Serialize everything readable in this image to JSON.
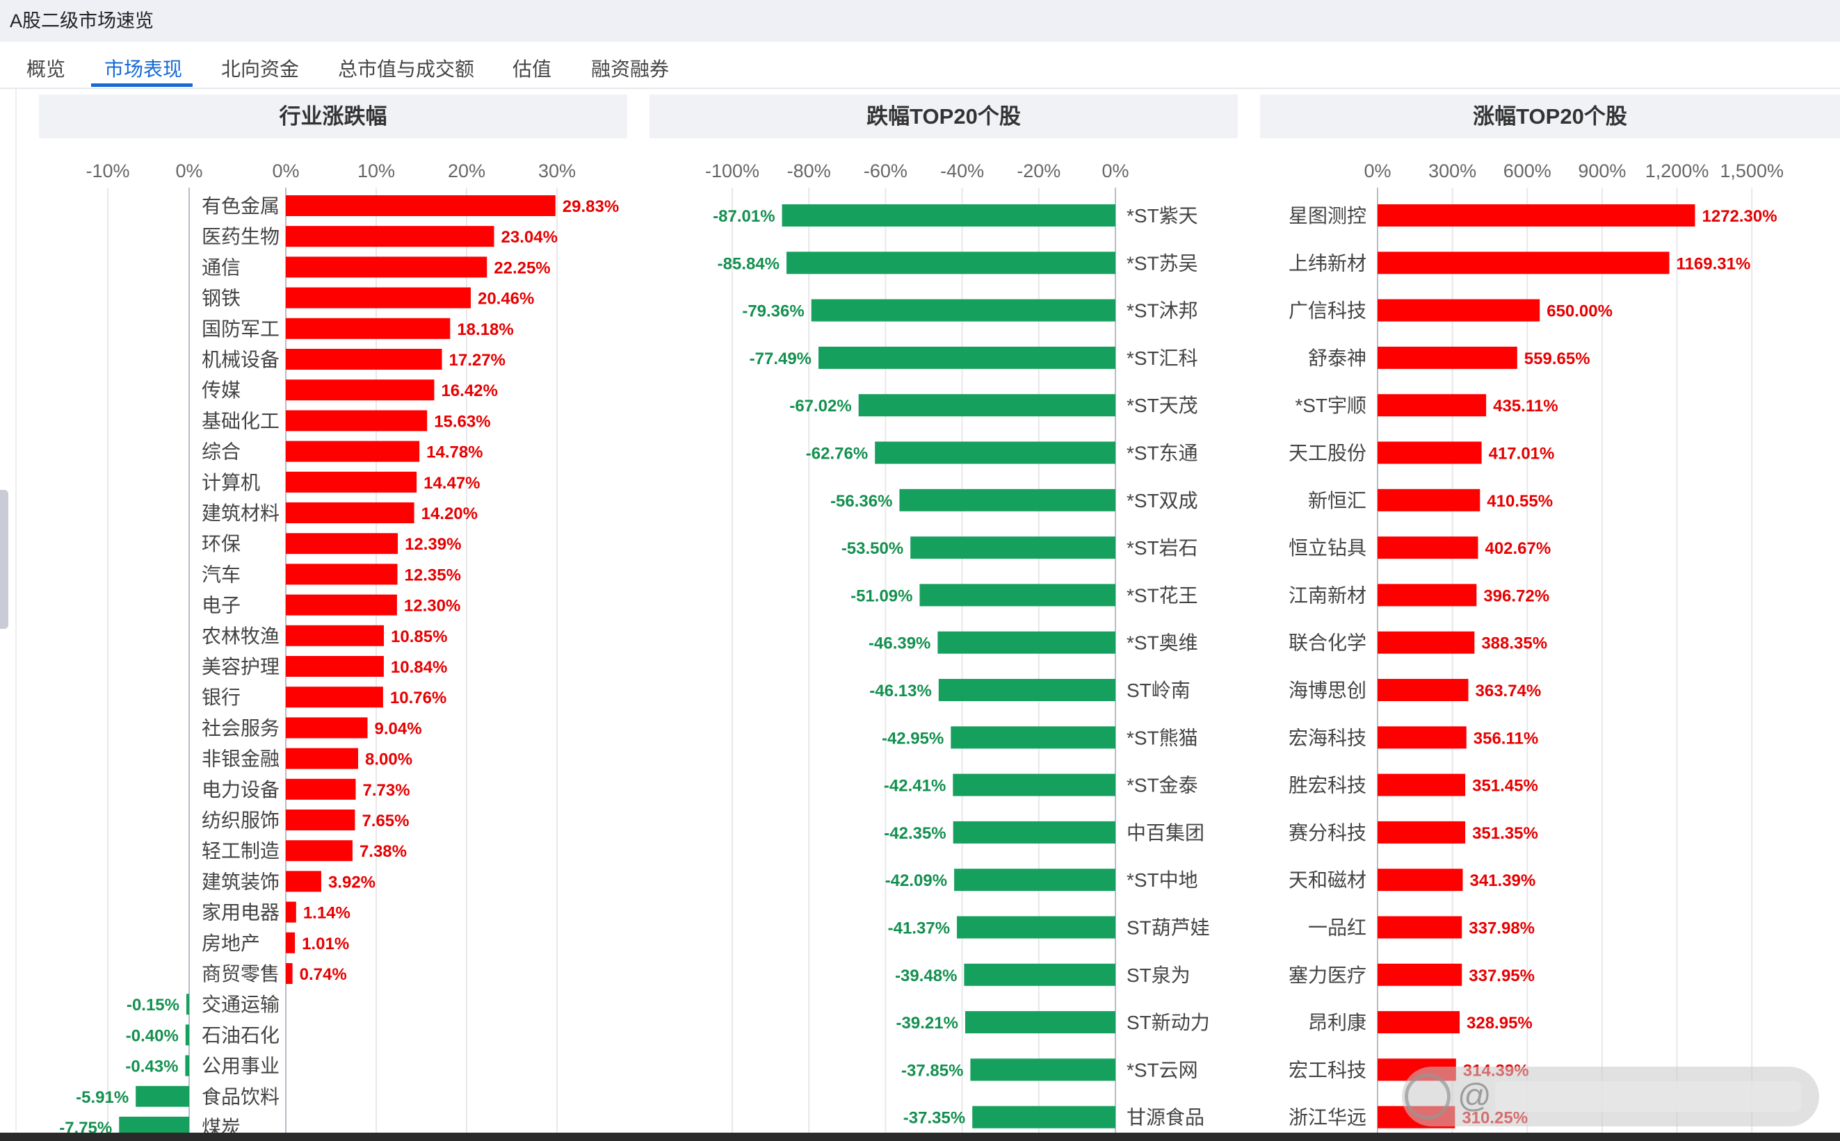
{
  "window": {
    "title": "A股二级市场速览"
  },
  "tabs": [
    {
      "label": "概览",
      "active": false
    },
    {
      "label": "市场表现",
      "active": true
    },
    {
      "label": "北向资金",
      "active": false
    },
    {
      "label": "总市值与成交额",
      "active": false
    },
    {
      "label": "估值",
      "active": false
    },
    {
      "label": "融资融券",
      "active": false
    }
  ],
  "colors": {
    "up": "#ff0000",
    "down": "#16a05d",
    "accent": "#1769d6",
    "label_up": "#e60000",
    "label_down": "#13904f"
  },
  "watermark": {
    "icon": "weibo-logo-icon",
    "text": "@"
  },
  "chart_data": [
    {
      "type": "bar",
      "orientation": "horizontal",
      "title": "行业涨跌幅",
      "xlim": [
        -10,
        30
      ],
      "xticks": [
        "-10%",
        "0%",
        "0%",
        "10%",
        "20%",
        "30%"
      ],
      "grid": true,
      "categories": [
        "有色金属",
        "医药生物",
        "通信",
        "钢铁",
        "国防军工",
        "机械设备",
        "传媒",
        "基础化工",
        "综合",
        "计算机",
        "建筑材料",
        "环保",
        "汽车",
        "电子",
        "农林牧渔",
        "美容护理",
        "银行",
        "社会服务",
        "非银金融",
        "电力设备",
        "纺织服饰",
        "轻工制造",
        "建筑装饰",
        "家用电器",
        "房地产",
        "商贸零售",
        "交通运输",
        "石油石化",
        "公用事业",
        "食品饮料",
        "煤炭"
      ],
      "values": [
        29.83,
        23.04,
        22.25,
        20.46,
        18.18,
        17.27,
        16.42,
        15.63,
        14.78,
        14.47,
        14.2,
        12.39,
        12.35,
        12.3,
        10.85,
        10.84,
        10.76,
        9.04,
        8.0,
        7.73,
        7.65,
        7.38,
        3.92,
        1.14,
        1.01,
        0.74,
        -0.15,
        -0.4,
        -0.43,
        -5.91,
        -7.75
      ],
      "labels": [
        "29.83%",
        "23.04%",
        "22.25%",
        "20.46%",
        "18.18%",
        "17.27%",
        "16.42%",
        "15.63%",
        "14.78%",
        "14.47%",
        "14.20%",
        "12.39%",
        "12.35%",
        "12.30%",
        "10.85%",
        "10.84%",
        "10.76%",
        "9.04%",
        "8.00%",
        "7.73%",
        "7.65%",
        "7.38%",
        "3.92%",
        "1.14%",
        "1.01%",
        "0.74%",
        "-0.15%",
        "-0.40%",
        "-0.43%",
        "-5.91%",
        "-7.75%"
      ]
    },
    {
      "type": "bar",
      "orientation": "horizontal",
      "title": "跌幅TOP20个股",
      "xlim": [
        -100,
        0
      ],
      "xticks": [
        "-100%",
        "-80%",
        "-60%",
        "-40%",
        "-20%",
        "0%"
      ],
      "grid": true,
      "categories": [
        "*ST紫天",
        "*ST苏吴",
        "*ST沐邦",
        "*ST汇科",
        "*ST天茂",
        "*ST东通",
        "*ST双成",
        "*ST岩石",
        "*ST花王",
        "*ST奥维",
        "ST岭南",
        "*ST熊猫",
        "*ST金泰",
        "中百集团",
        "*ST中地",
        "ST葫芦娃",
        "ST泉为",
        "ST新动力",
        "*ST云网",
        "甘源食品"
      ],
      "values": [
        -87.01,
        -85.84,
        -79.36,
        -77.49,
        -67.02,
        -62.76,
        -56.36,
        -53.5,
        -51.09,
        -46.39,
        -46.13,
        -42.95,
        -42.41,
        -42.35,
        -42.09,
        -41.37,
        -39.48,
        -39.21,
        -37.85,
        -37.35
      ],
      "labels": [
        "-87.01%",
        "-85.84%",
        "-79.36%",
        "-77.49%",
        "-67.02%",
        "-62.76%",
        "-56.36%",
        "-53.50%",
        "-51.09%",
        "-46.39%",
        "-46.13%",
        "-42.95%",
        "-42.41%",
        "-42.35%",
        "-42.09%",
        "-41.37%",
        "-39.48%",
        "-39.21%",
        "-37.85%",
        "-37.35%"
      ]
    },
    {
      "type": "bar",
      "orientation": "horizontal",
      "title": "涨幅TOP20个股",
      "xlim": [
        0,
        1500
      ],
      "xticks": [
        "0%",
        "300%",
        "600%",
        "900%",
        "1,200%",
        "1,500%"
      ],
      "grid": true,
      "categories": [
        "星图测控",
        "上纬新材",
        "广信科技",
        "舒泰神",
        "*ST宇顺",
        "天工股份",
        "新恒汇",
        "恒立钻具",
        "江南新材",
        "联合化学",
        "海博思创",
        "宏海科技",
        "胜宏科技",
        "赛分科技",
        "天和磁材",
        "一品红",
        "塞力医疗",
        "昂利康",
        "宏工科技",
        "浙江华远"
      ],
      "values": [
        1272.3,
        1169.31,
        650.0,
        559.65,
        435.11,
        417.01,
        410.55,
        402.67,
        396.72,
        388.35,
        363.74,
        356.11,
        351.45,
        351.35,
        341.39,
        337.98,
        337.95,
        328.95,
        314.39,
        310.25
      ],
      "labels": [
        "1272.30%",
        "1169.31%",
        "650.00%",
        "559.65%",
        "435.11%",
        "417.01%",
        "410.55%",
        "402.67%",
        "396.72%",
        "388.35%",
        "363.74%",
        "356.11%",
        "351.45%",
        "351.35%",
        "341.39%",
        "337.98%",
        "337.95%",
        "328.95%",
        "314.39%",
        "310.25%"
      ]
    }
  ]
}
